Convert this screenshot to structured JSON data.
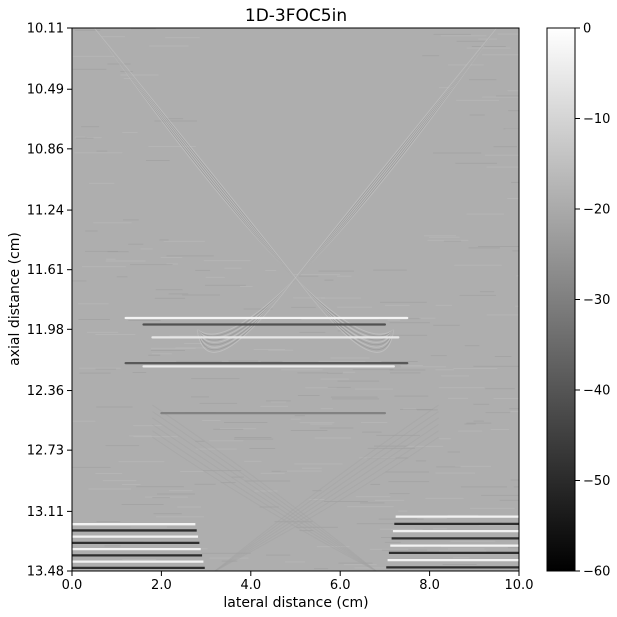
{
  "chart_data": {
    "type": "heatmap",
    "title": "1D-3FOC5in",
    "xlabel": "lateral distance (cm)",
    "ylabel": "axial distance (cm)",
    "xlim": [
      0.0,
      10.0
    ],
    "ylim": [
      10.11,
      13.48
    ],
    "y_inverted": true,
    "xticks": [
      "0.0",
      "2.0",
      "4.0",
      "6.0",
      "8.0",
      "10.0"
    ],
    "yticks": [
      "10.11",
      "10.49",
      "10.86",
      "11.24",
      "11.61",
      "11.98",
      "12.36",
      "12.73",
      "13.11",
      "13.48"
    ],
    "colorbar": {
      "colormap": "gray",
      "range": [
        -60,
        0
      ],
      "ticks": [
        "0",
        "−10",
        "−20",
        "−30",
        "−40",
        "−50",
        "−60"
      ]
    },
    "background_level_db": -19,
    "features": {
      "wavefront_crossing": {
        "x": 5.0,
        "y": 11.67
      },
      "reflector_lines": [
        {
          "y": 11.91,
          "x_start": 1.2,
          "x_end": 7.5,
          "level_db": -2
        },
        {
          "y": 11.95,
          "x_start": 1.6,
          "x_end": 7.0,
          "level_db": -42
        },
        {
          "y": 12.03,
          "x_start": 1.8,
          "x_end": 7.3,
          "level_db": -5
        },
        {
          "y": 12.19,
          "x_start": 1.2,
          "x_end": 7.5,
          "level_db": -40
        },
        {
          "y": 12.21,
          "x_start": 1.6,
          "x_end": 7.2,
          "level_db": -4
        },
        {
          "y": 12.5,
          "x_start": 2.0,
          "x_end": 7.0,
          "level_db": -30
        }
      ],
      "bottom_bands": [
        {
          "side": "left",
          "x_start": 0.0,
          "x_end": 3.0,
          "y_start": 13.17,
          "y_end": 13.48
        },
        {
          "side": "right",
          "x_start": 7.0,
          "x_end": 10.0,
          "y_start": 13.12,
          "y_end": 13.48
        }
      ]
    }
  }
}
